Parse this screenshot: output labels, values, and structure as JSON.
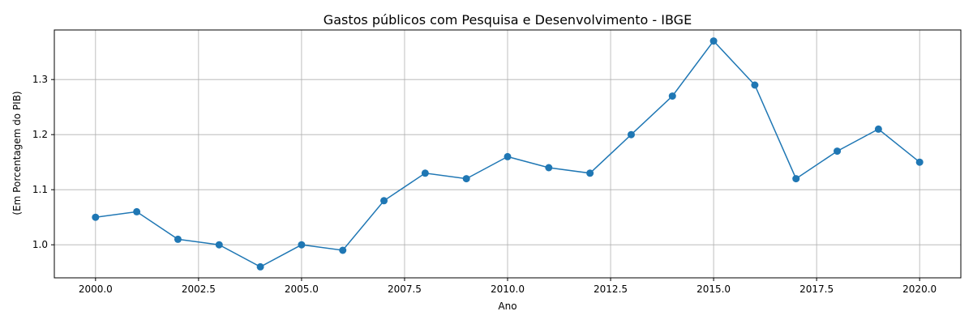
{
  "chart_data": {
    "type": "line",
    "title": "Gastos públicos com Pesquisa e Desenvolvimento - IBGE",
    "xlabel": "Ano",
    "ylabel": "(Em Porcentagem do PIB)",
    "xlim": [
      1999.0,
      2021.0
    ],
    "ylim": [
      0.94,
      1.39
    ],
    "grid": true,
    "x_ticks": [
      "2000.0",
      "2002.5",
      "2005.0",
      "2007.5",
      "2010.0",
      "2012.5",
      "2015.0",
      "2017.5",
      "2020.0"
    ],
    "y_ticks": [
      "1.0",
      "1.1",
      "1.2",
      "1.3"
    ],
    "series_color": "#1f77b4",
    "x": [
      2000,
      2001,
      2002,
      2003,
      2004,
      2005,
      2006,
      2007,
      2008,
      2009,
      2010,
      2011,
      2012,
      2013,
      2014,
      2015,
      2016,
      2017,
      2018,
      2019,
      2020
    ],
    "values": [
      1.05,
      1.06,
      1.01,
      1.0,
      0.96,
      1.0,
      0.99,
      1.08,
      1.13,
      1.12,
      1.16,
      1.14,
      1.13,
      1.2,
      1.27,
      1.37,
      1.29,
      1.12,
      1.17,
      1.21,
      1.15
    ]
  }
}
